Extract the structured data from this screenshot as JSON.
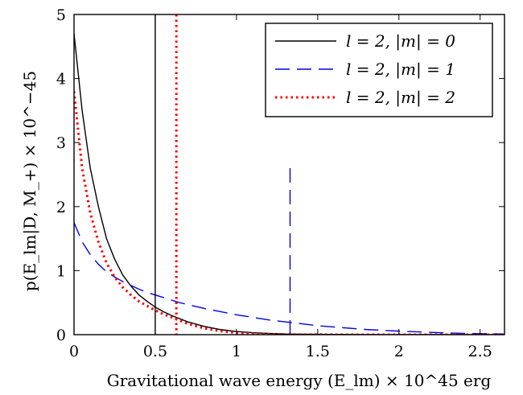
{
  "chart_data": {
    "type": "line",
    "title": "",
    "xlabel": "Gravitational wave energy (E_lm) × 10^45 erg",
    "ylabel": "p(E_lm|D, M_+) × 10^−45",
    "xlim": [
      0,
      2.65
    ],
    "ylim": [
      0,
      5
    ],
    "x_ticks": [
      "0",
      "0.5",
      "1",
      "1.5",
      "2",
      "2.5"
    ],
    "y_ticks": [
      "0",
      "1",
      "2",
      "3",
      "4",
      "5"
    ],
    "x_tick_values": [
      0,
      0.5,
      1,
      1.5,
      2,
      2.5
    ],
    "y_tick_values": [
      0,
      1,
      2,
      3,
      4,
      5
    ],
    "grid": false,
    "legend_position": "top-right",
    "x": [
      0,
      0.05,
      0.1,
      0.15,
      0.2,
      0.25,
      0.3,
      0.35,
      0.4,
      0.45,
      0.5,
      0.55,
      0.6,
      0.65,
      0.7,
      0.8,
      0.9,
      1.0,
      1.1,
      1.2,
      1.3,
      1.4,
      1.5,
      1.6,
      1.8,
      2.0,
      2.2,
      2.4,
      2.65
    ],
    "series": [
      {
        "name": "l = 2,  |m| = 0",
        "color": "#000000",
        "style": "solid",
        "values": [
          4.7,
          3.5,
          2.6,
          2.0,
          1.5,
          1.18,
          0.93,
          0.76,
          0.62,
          0.52,
          0.43,
          0.36,
          0.3,
          0.25,
          0.2,
          0.13,
          0.08,
          0.05,
          0.03,
          0.02,
          0.01,
          0.007,
          0.005,
          0.003,
          0.001,
          0.0005,
          0.0002,
          0.0001,
          0
        ],
        "vline": 0.5
      },
      {
        "name": "l = 2,  |m| = 1",
        "color": "#0000e6",
        "style": "dashed",
        "values": [
          1.75,
          1.45,
          1.25,
          1.1,
          0.98,
          0.9,
          0.83,
          0.77,
          0.71,
          0.66,
          0.62,
          0.58,
          0.54,
          0.5,
          0.47,
          0.41,
          0.36,
          0.31,
          0.27,
          0.23,
          0.2,
          0.17,
          0.14,
          0.12,
          0.08,
          0.055,
          0.035,
          0.02,
          0.01
        ],
        "vline": 1.33
      },
      {
        "name": "l = 2,  |m| = 2",
        "color": "#ff0000",
        "style": "dotted",
        "values": [
          3.8,
          2.6,
          1.9,
          1.45,
          1.12,
          0.9,
          0.74,
          0.62,
          0.52,
          0.45,
          0.38,
          0.32,
          0.27,
          0.22,
          0.17,
          0.1,
          0.055,
          0.028,
          0.014,
          0.007,
          0.004,
          0.002,
          0.001,
          0.0005,
          0.0001,
          0,
          0,
          0,
          0
        ],
        "vline": 0.63
      }
    ]
  }
}
